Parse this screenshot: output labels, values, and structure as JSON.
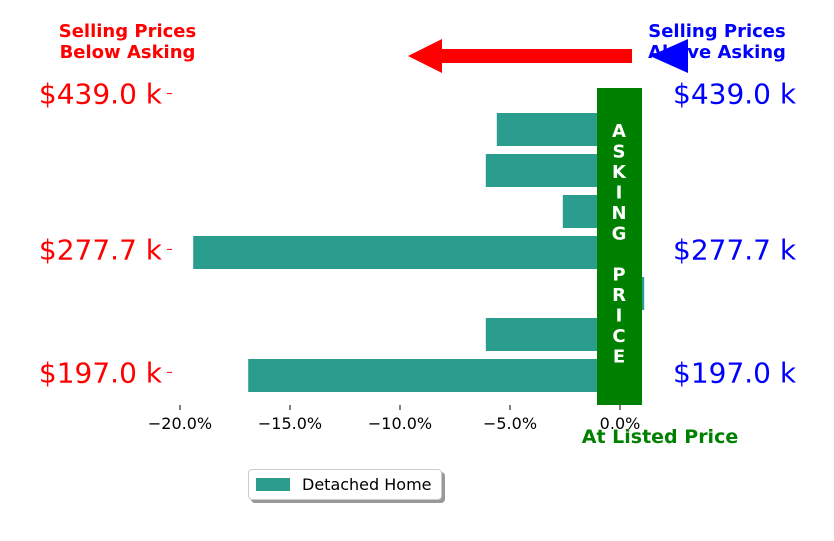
{
  "header_left": {
    "line1": "Selling Prices",
    "line2": "Below Asking",
    "color": "#ff0000"
  },
  "header_right": {
    "line1": "Selling Prices",
    "line2": "Above Asking",
    "color": "#0000ff"
  },
  "asking_label": "ASKING PRICE",
  "listed_label": "At Listed Price",
  "listed_color": "#008000",
  "bar_color": "#2a9d8f",
  "legend": {
    "label": "Detached Home"
  },
  "chart_data": {
    "type": "bar",
    "orientation": "horizontal",
    "series": [
      {
        "name": "Detached Home",
        "values": [
          -5.6,
          -6.1,
          -2.6,
          -19.4,
          1.1,
          -6.1,
          -16.9
        ]
      }
    ],
    "xlim": [
      -20,
      2
    ],
    "x_ticks": [
      -20,
      -15,
      -10,
      -5,
      0
    ],
    "x_tick_labels": [
      "−20.0%",
      "−15.0%",
      "−10.0%",
      "−5.0%",
      "0.0%"
    ],
    "y_tick_labels_left": [
      "$439.0 k",
      "$277.7 k",
      "$197.0 k"
    ],
    "y_tick_labels_right": [
      "$439.0 k",
      "$277.7 k",
      "$197.0 k"
    ],
    "y_label_rows": [
      -0.9,
      2.9,
      5.9
    ],
    "legend_position": "bottom-center",
    "grid": false
  }
}
